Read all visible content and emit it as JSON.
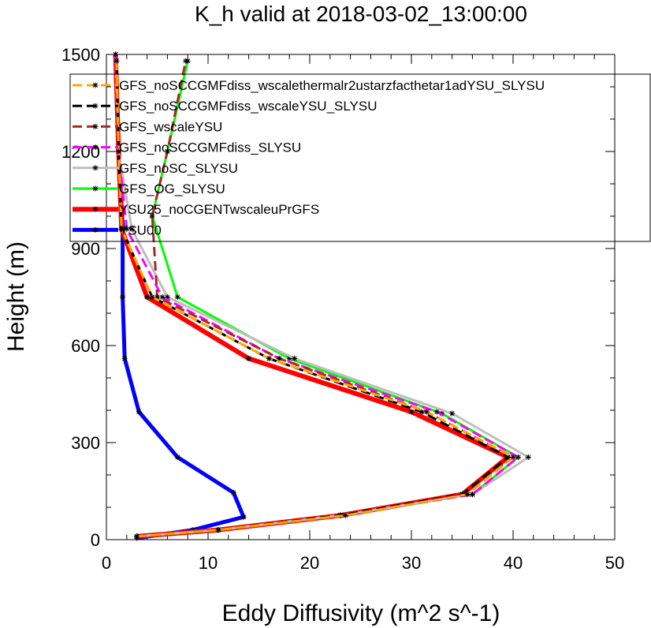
{
  "chart_data": {
    "type": "line",
    "title": "K_h valid at 2018-03-02_13:00:00",
    "xlabel": "Eddy Diffusivity (m^2 s^-1)",
    "ylabel": "Height (m)",
    "xlim": [
      0,
      50
    ],
    "ylim": [
      0,
      1500
    ],
    "xticks": [
      "0",
      "10",
      "20",
      "30",
      "40",
      "50"
    ],
    "yticks": [
      "0",
      "300",
      "600",
      "900",
      "1200",
      "1500"
    ],
    "xtick_values": [
      0,
      10,
      20,
      30,
      40,
      50
    ],
    "ytick_values": [
      0,
      300,
      600,
      900,
      1200,
      1500
    ],
    "legend_position": "top-right",
    "grid": false,
    "marker": "asterisk",
    "series": [
      {
        "name": "GFS_noSCCGMFdiss_wscalethermalr2ustarzfacthetar1adYSU_SLYSU",
        "color": "#ffa500",
        "style": "dashed",
        "width": 3,
        "points": [
          [
            3,
            10
          ],
          [
            11,
            30
          ],
          [
            23.5,
            75
          ],
          [
            35.5,
            140
          ],
          [
            40,
            255
          ],
          [
            31.5,
            395
          ],
          [
            16,
            560
          ],
          [
            4.5,
            750
          ],
          [
            1.5,
            960
          ],
          [
            1.2,
            1200
          ],
          [
            1,
            1480
          ]
        ]
      },
      {
        "name": "GFS_noSCCGMFdiss_wscaleYSU_SLYSU",
        "color": "#000000",
        "style": "dashed",
        "width": 3,
        "points": [
          [
            3,
            10
          ],
          [
            11,
            30
          ],
          [
            23,
            75
          ],
          [
            35,
            140
          ],
          [
            39.5,
            255
          ],
          [
            31,
            395
          ],
          [
            16,
            560
          ],
          [
            4.5,
            750
          ],
          [
            1.5,
            960
          ],
          [
            1.2,
            1200
          ],
          [
            1,
            1480
          ]
        ]
      },
      {
        "name": "GFS_wscaleYSU",
        "color": "#a52a2a",
        "style": "dashed",
        "width": 3,
        "points": [
          [
            3,
            10
          ],
          [
            11,
            30
          ],
          [
            23,
            75
          ],
          [
            35,
            140
          ],
          [
            40,
            255
          ],
          [
            31.5,
            395
          ],
          [
            17,
            560
          ],
          [
            5,
            750
          ],
          [
            4.5,
            1000
          ],
          [
            6,
            1200
          ],
          [
            7.8,
            1480
          ]
        ]
      },
      {
        "name": "GFS_noSCCGMFdiss_SLYSU",
        "color": "#ff00ff",
        "style": "dashed",
        "width": 3,
        "points": [
          [
            3,
            10
          ],
          [
            11,
            30
          ],
          [
            23,
            75
          ],
          [
            36,
            140
          ],
          [
            40.5,
            255
          ],
          [
            32.5,
            395
          ],
          [
            17,
            560
          ],
          [
            5.5,
            750
          ],
          [
            2,
            960
          ],
          [
            1.2,
            1200
          ],
          [
            0.9,
            1500
          ]
        ]
      },
      {
        "name": "GFS_noSC_SLYSU",
        "color": "#bebebe",
        "style": "solid",
        "width": 3,
        "points": [
          [
            3,
            10
          ],
          [
            11,
            30
          ],
          [
            23,
            75
          ],
          [
            36,
            140
          ],
          [
            41.5,
            255
          ],
          [
            34,
            390
          ],
          [
            18.5,
            560
          ],
          [
            6,
            750
          ],
          [
            2.5,
            960
          ],
          [
            1.2,
            1200
          ],
          [
            0.9,
            1500
          ]
        ]
      },
      {
        "name": "GFS_OG_SLYSU",
        "color": "#00ff00",
        "style": "solid",
        "width": 3,
        "points": [
          [
            3,
            10
          ],
          [
            11,
            30
          ],
          [
            23,
            75
          ],
          [
            36,
            140
          ],
          [
            40.5,
            255
          ],
          [
            33,
            390
          ],
          [
            18,
            560
          ],
          [
            7,
            750
          ],
          [
            4.5,
            1000
          ],
          [
            6,
            1200
          ],
          [
            8,
            1480
          ]
        ]
      },
      {
        "name": "YSU25_noCGENTwscaleuPrGFS",
        "color": "#ff0000",
        "style": "solid",
        "width": 6,
        "points": [
          [
            3,
            10
          ],
          [
            11,
            30
          ],
          [
            23,
            75
          ],
          [
            35,
            140
          ],
          [
            39.5,
            255
          ],
          [
            30,
            395
          ],
          [
            14,
            560
          ],
          [
            4,
            750
          ],
          [
            1.5,
            960
          ],
          [
            1.2,
            1200
          ],
          [
            0.9,
            1500
          ]
        ]
      },
      {
        "name": "YSU00",
        "color": "#0000ff",
        "style": "solid",
        "width": 5,
        "points": [
          [
            3,
            5
          ],
          [
            8.5,
            30
          ],
          [
            13.5,
            70
          ],
          [
            12.5,
            145
          ],
          [
            7,
            255
          ],
          [
            3.2,
            395
          ],
          [
            1.8,
            560
          ],
          [
            1.6,
            750
          ],
          [
            1.6,
            970
          ],
          [
            1.2,
            1200
          ],
          [
            0.9,
            1500
          ]
        ]
      }
    ]
  }
}
